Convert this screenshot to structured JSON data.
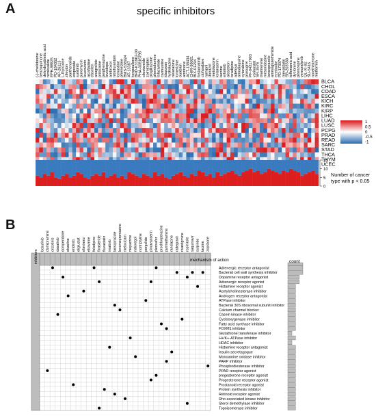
{
  "panel_a": {
    "letter": "A",
    "title": "specific inhibitors",
    "heatmap_columns": [
      "(-)-chelidonine",
      "benzoquinone",
      "dehydroabietic acid",
      "nimesulide",
      "EPH-98825",
      "PD-184352",
      "AP-26113",
      "L-thyroxine",
      "zileuton",
      "parthenolide",
      "etoposide",
      "sunitinib",
      "puromycin",
      "leucovorin",
      "alcaftadine",
      "ebselen",
      "anagrelide",
      "prilocaine",
      "perphenazine",
      "levodopa",
      "ambroxol",
      "nitrofurantoin",
      "lomustine",
      "phenelzine",
      "BMS-536924",
      "AT-13387",
      "kenpaullone",
      "BRD-K31962-00",
      "PHA-00816795",
      "cilostamide",
      "zolmitriptan",
      "pioglitazone",
      "phentolamine",
      "tolazamide",
      "carmustine",
      "idazoxan",
      "hydralazine",
      "nelarabine",
      "lomerizine",
      "ouabain",
      "amrinone",
      "ACT-138434",
      "CHIR-99021",
      "BIX-01294",
      "fostamatinib",
      "clofarabine",
      "ramipril",
      "danazol",
      "metolazone",
      "ketanserin",
      "tacrine",
      "erlotinib",
      "alosetron",
      "isradipine",
      "adefovir",
      "amodiaquine",
      "cytarabine",
      "prasugrel",
      "PF-04217903",
      "vorinostat",
      "SR-3576",
      "triamterene",
      "mesoridazine",
      "lansoprazole",
      "aminoglutethimide",
      "ezetimibe",
      "PD-173074",
      "mevastatin",
      "SB-203580",
      "tolfenamic acid",
      "dyclonine",
      "pirenzepine",
      "vemurafenib",
      "QL-XI-92",
      "SU-5416",
      "norethisterone",
      "metformin"
    ],
    "heatmap_rows": [
      "BLCA",
      "CHOL",
      "COAD",
      "ESCA",
      "KICH",
      "KIRC",
      "KIRP",
      "LIHC",
      "LUAD",
      "LUSC",
      "PCPG",
      "PRAD",
      "READ",
      "SARC",
      "STAD",
      "THCA",
      "THYM",
      "UCEC"
    ],
    "colorbar_ticks": [
      "1",
      "0.5",
      "0",
      "-0.5",
      "-1"
    ],
    "bar_axis_ticks": [
      "15",
      "10",
      "5",
      "0"
    ],
    "bar_legend": "Number of cancer type with p < 0.05",
    "colors": {
      "high": "#d7191c",
      "mid": "#ffffff",
      "low": "#2b6cb0",
      "bar_red": "#dc1e1e",
      "bar_blue": "#3a7bbf"
    }
  },
  "panel_b": {
    "letter": "B",
    "row_group_label": "inhibitors",
    "col_group_label": "mechanism of action",
    "count_label": "count",
    "drugs": [
      "bosutinib",
      "clomipramine",
      "crizotinib",
      "dasatinib",
      "domperidone",
      "ebastine",
      "erlotinib",
      "eliglustat",
      "efavirenz",
      "etravirine",
      "felodipine",
      "finasteride",
      "fluvastatin",
      "imatinib",
      "lansoprazole",
      "levomepromazine",
      "meloxicam",
      "mepacrine",
      "naloxegol",
      "nortriptyline",
      "pergolide",
      "pimavanserin",
      "plerixafor",
      "prochlorperazine",
      "pyrimethamine",
      "ranolazine",
      "raltegravir",
      "rivastigmine",
      "ropinirole",
      "saquinavir",
      "sulpiride",
      "tacrine",
      "zopiclone"
    ],
    "mechanisms": [
      "Adrenergic receptor antagonist",
      "Bacterial cell wall synthesis inhibitor",
      "Dopamine receptor antagonist",
      "Adrenergic receptor agonist",
      "Histamine receptor agonist",
      "Acetylcholinesterase inhibitor",
      "Androgen receptor antagonist",
      "ATPase inhibitor",
      "Bacterial 30S ribosomal subunit inhibitor",
      "Calcium channel blocker",
      "Casein kinase inhibitor",
      "Cyclooxygenase inhibitor",
      "Fatty acid synthase inhibitor",
      "FOXM1 inhibitor",
      "Glutathione transferase inhibitor",
      "H+/K+-ATPase inhibitor",
      "HDAC inhibitor",
      "Histamine receptor antagonist",
      "Insulin secretagogue",
      "Monoamine oxidase inhibitor",
      "PARP inhibitor",
      "Phosphodiesterase inhibitor",
      "PPAR receptor agonist",
      "progesterone receptor agonist",
      "Progesterone receptor agonist",
      "Prostanoid receptor agonist",
      "Protein synthesis inhibitor",
      "Retinoid receptor agonist",
      "Rho associated kinase inhibitor",
      "Sterol demethylase inhibitor",
      "Topoisomerase inhibitor"
    ]
  },
  "chart_data": [
    {
      "type": "heatmap",
      "title": "specific inhibitors",
      "rows": [
        "BLCA",
        "CHOL",
        "COAD",
        "ESCA",
        "KICH",
        "KIRC",
        "KIRP",
        "LIHC",
        "LUAD",
        "LUSC",
        "PCPG",
        "PRAD",
        "READ",
        "SARC",
        "STAD",
        "THCA",
        "THYM",
        "UCEC"
      ],
      "value_range": [
        -1,
        1
      ]
    },
    {
      "type": "bar",
      "ylim": [
        0,
        15
      ],
      "legend": "Number of cancer type with p < 0.05",
      "series": [
        {
          "values": [
            6,
            5,
            7,
            6,
            8,
            5,
            4,
            6,
            7,
            5,
            6,
            8,
            7,
            5,
            4,
            6,
            7,
            6,
            8,
            5,
            6,
            7,
            5,
            6,
            4,
            8,
            7,
            6,
            5,
            7,
            6,
            5,
            8,
            6,
            7,
            5,
            4,
            6,
            7,
            8,
            6,
            5,
            7,
            6,
            9,
            8,
            6,
            7,
            5,
            8,
            6,
            7,
            8,
            9,
            7,
            6,
            8,
            9,
            10,
            8,
            9,
            7,
            8,
            10,
            9,
            8,
            7,
            9,
            8,
            10,
            9,
            8,
            6,
            7,
            8,
            9,
            7
          ]
        }
      ]
    },
    {
      "type": "table",
      "matches": [
        [
          2,
          0
        ],
        [
          10,
          0
        ],
        [
          22,
          0
        ],
        [
          31,
          1
        ],
        [
          26,
          1
        ],
        [
          29,
          1
        ],
        [
          4,
          2
        ],
        [
          28,
          2
        ],
        [
          11,
          3
        ],
        [
          21,
          3
        ],
        [
          30,
          4
        ],
        [
          8,
          5
        ],
        [
          5,
          6
        ],
        [
          20,
          7
        ],
        [
          14,
          8
        ],
        [
          15,
          9
        ],
        [
          3,
          10
        ],
        [
          27,
          11
        ],
        [
          23,
          12
        ],
        [
          24,
          13
        ],
        [
          17,
          15
        ],
        [
          13,
          17
        ],
        [
          25,
          18
        ],
        [
          18,
          19
        ],
        [
          24,
          20
        ],
        [
          32,
          21
        ],
        [
          1,
          22
        ],
        [
          22,
          23
        ],
        [
          21,
          24
        ],
        [
          6,
          25
        ],
        [
          12,
          26
        ],
        [
          14,
          27
        ],
        [
          16,
          28
        ],
        [
          28,
          29
        ],
        [
          11,
          30
        ]
      ]
    }
  ]
}
